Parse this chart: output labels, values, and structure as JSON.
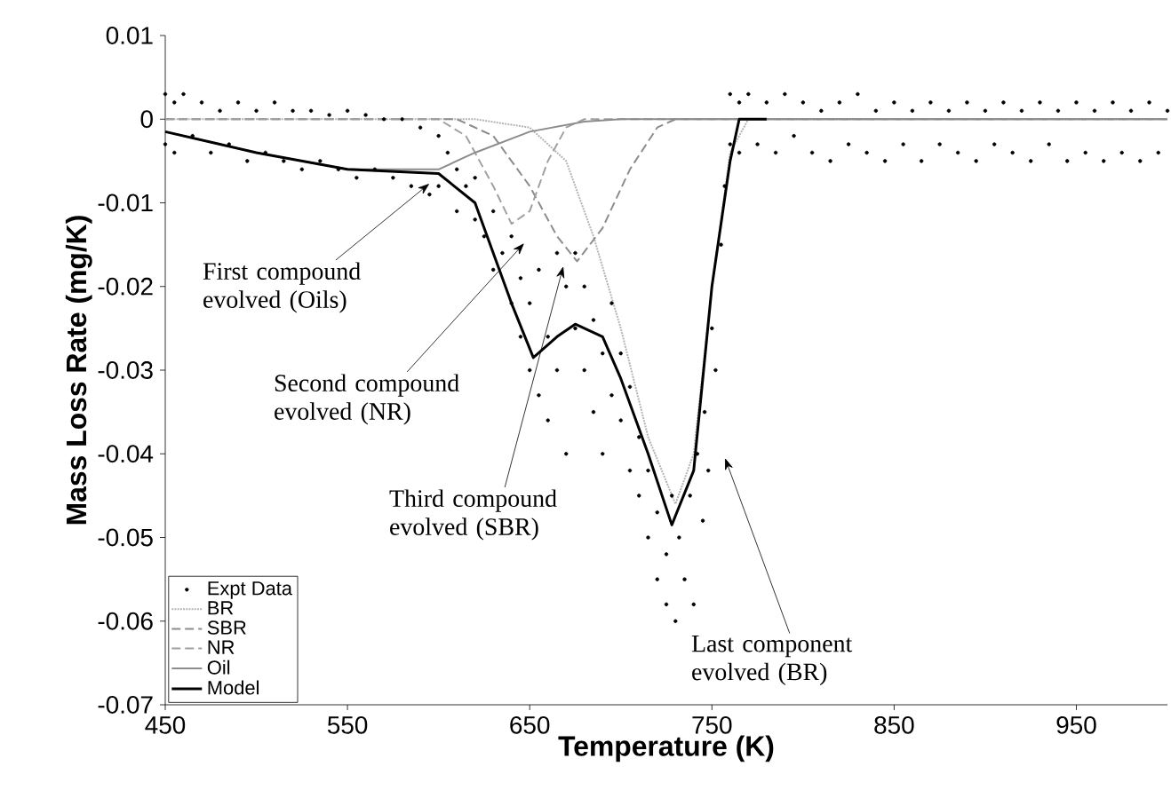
{
  "chart_data": {
    "type": "line",
    "xlabel": "Temperature (K)",
    "ylabel": "Mass Loss Rate (mg/K)",
    "xlim": [
      450,
      1000
    ],
    "ylim": [
      -0.07,
      0.01
    ],
    "xticks": [
      450,
      550,
      650,
      750,
      850,
      950
    ],
    "yticks": [
      -0.07,
      -0.06,
      -0.05,
      -0.04,
      -0.03,
      -0.02,
      -0.01,
      0,
      0.01
    ],
    "legend": "bottom left",
    "series": [
      {
        "name": "Expt Data",
        "type": "scatter",
        "color": "#000000",
        "x": [
          450,
          450,
          455,
          455,
          460,
          465,
          470,
          475,
          480,
          485,
          490,
          495,
          500,
          505,
          510,
          515,
          520,
          525,
          530,
          535,
          540,
          545,
          550,
          555,
          560,
          565,
          570,
          575,
          580,
          585,
          590,
          595,
          600,
          600,
          605,
          610,
          610,
          615,
          620,
          620,
          625,
          630,
          630,
          635,
          640,
          640,
          645,
          645,
          650,
          650,
          655,
          655,
          660,
          660,
          665,
          665,
          670,
          670,
          675,
          675,
          680,
          680,
          685,
          685,
          690,
          690,
          695,
          695,
          700,
          700,
          705,
          705,
          710,
          710,
          715,
          715,
          720,
          720,
          725,
          725,
          728,
          730,
          732,
          735,
          738,
          740,
          742,
          745,
          746,
          748,
          750,
          752,
          755,
          757,
          760,
          760,
          765,
          765,
          770,
          775,
          780,
          785,
          790,
          795,
          800,
          805,
          810,
          815,
          820,
          825,
          830,
          835,
          840,
          845,
          850,
          855,
          860,
          865,
          870,
          875,
          880,
          885,
          890,
          895,
          900,
          905,
          910,
          915,
          920,
          925,
          930,
          935,
          940,
          945,
          950,
          955,
          960,
          965,
          970,
          975,
          980,
          985,
          990,
          995,
          1000
        ],
        "values": [
          0.003,
          -0.003,
          0.002,
          -0.004,
          0.003,
          -0.002,
          0.002,
          -0.004,
          0.001,
          -0.003,
          0.002,
          -0.005,
          0.001,
          -0.004,
          0.002,
          -0.005,
          0.001,
          -0.006,
          0.001,
          -0.005,
          0.0005,
          -0.006,
          0.001,
          -0.007,
          0.0005,
          -0.006,
          0.0,
          -0.007,
          0.0,
          -0.008,
          -0.001,
          -0.009,
          -0.002,
          -0.008,
          -0.004,
          -0.006,
          -0.011,
          -0.008,
          -0.012,
          -0.007,
          -0.014,
          -0.011,
          -0.018,
          -0.016,
          -0.022,
          -0.014,
          -0.026,
          -0.019,
          -0.03,
          -0.022,
          -0.033,
          -0.018,
          -0.026,
          -0.036,
          -0.016,
          -0.03,
          -0.02,
          -0.04,
          -0.025,
          -0.016,
          -0.03,
          -0.02,
          -0.035,
          -0.024,
          -0.028,
          -0.04,
          -0.033,
          -0.022,
          -0.036,
          -0.028,
          -0.042,
          -0.032,
          -0.038,
          -0.045,
          -0.042,
          -0.05,
          -0.047,
          -0.055,
          -0.052,
          -0.058,
          -0.045,
          -0.06,
          -0.05,
          -0.055,
          -0.045,
          -0.058,
          -0.04,
          -0.048,
          -0.035,
          -0.042,
          -0.025,
          -0.03,
          -0.015,
          -0.008,
          -0.003,
          0.003,
          -0.004,
          0.002,
          0.003,
          -0.003,
          0.002,
          -0.004,
          0.003,
          -0.002,
          0.002,
          -0.004,
          0.001,
          -0.005,
          0.002,
          -0.003,
          0.003,
          -0.004,
          0.001,
          -0.005,
          0.002,
          -0.003,
          0.001,
          -0.005,
          0.002,
          -0.003,
          0.001,
          -0.004,
          0.002,
          -0.005,
          0.001,
          -0.003,
          0.002,
          -0.004,
          0.001,
          -0.005,
          0.002,
          -0.003,
          0.001,
          -0.005,
          0.002,
          -0.004,
          0.001,
          -0.005,
          0.002,
          -0.004,
          0.001,
          -0.005,
          0.002,
          -0.004,
          0.001
        ]
      },
      {
        "name": "BR",
        "line_style": "dotted",
        "color": "#b4b4b4",
        "x": [
          450,
          620,
          650,
          670,
          685,
          700,
          715,
          730,
          740,
          750,
          760,
          770,
          1000
        ],
        "values": [
          0,
          0,
          -0.001,
          -0.005,
          -0.014,
          -0.025,
          -0.038,
          -0.046,
          -0.04,
          -0.02,
          -0.004,
          0,
          0
        ]
      },
      {
        "name": "SBR",
        "line_style": "dashed",
        "color": "#8c8c8c",
        "x": [
          450,
          610,
          630,
          650,
          665,
          676,
          690,
          705,
          720,
          730,
          1000
        ],
        "values": [
          0,
          0,
          -0.002,
          -0.008,
          -0.014,
          -0.017,
          -0.013,
          -0.006,
          -0.001,
          0,
          0
        ]
      },
      {
        "name": "NR",
        "line_style": "dashed",
        "color": "#a0a0a0",
        "x": [
          450,
          600,
          615,
          630,
          640,
          650,
          660,
          670,
          680,
          1000
        ],
        "values": [
          0,
          0,
          -0.002,
          -0.008,
          -0.0125,
          -0.011,
          -0.005,
          -0.001,
          0,
          0
        ]
      },
      {
        "name": "Oil",
        "line_style": "solid",
        "color": "#8c8c8c",
        "x": [
          450,
          500,
          550,
          600,
          620,
          650,
          680,
          700,
          1000
        ],
        "values": [
          -0.0015,
          -0.004,
          -0.006,
          -0.006,
          -0.004,
          -0.0015,
          -0.0003,
          0,
          0
        ]
      },
      {
        "name": "Model",
        "line_style": "solid",
        "color": "#000000",
        "x": [
          450,
          480,
          500,
          550,
          600,
          620,
          640,
          652,
          665,
          675,
          690,
          700,
          715,
          728,
          740,
          750,
          760,
          765,
          780
        ],
        "values": [
          -0.0015,
          -0.003,
          -0.004,
          -0.006,
          -0.0065,
          -0.01,
          -0.022,
          -0.0285,
          -0.026,
          -0.0245,
          -0.026,
          -0.031,
          -0.04,
          -0.0485,
          -0.042,
          -0.02,
          -0.005,
          0,
          0
        ]
      }
    ],
    "annotations": [
      {
        "text": "First compound evolved (Oils)",
        "x": 595,
        "y": -0.0077
      },
      "Second compound evolved (NR)",
      "Third compound evolved (SBR)",
      "Last component evolved (BR)"
    ]
  }
}
